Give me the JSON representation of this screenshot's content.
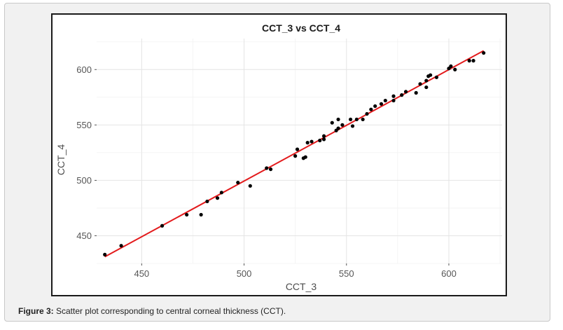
{
  "caption": {
    "label": "Figure 3:",
    "text": " Scatter plot corresponding to central corneal thickness (CCT)."
  },
  "chart_data": {
    "type": "scatter",
    "title": "CCT_3 vs CCT_4",
    "xlabel": "CCT_3",
    "ylabel": "CCT_4",
    "xlim": [
      428,
      626
    ],
    "ylim": [
      425,
      628
    ],
    "x_ticks": [
      450,
      500,
      550,
      600
    ],
    "y_ticks": [
      450,
      500,
      550,
      600
    ],
    "grid": true,
    "legend": "none",
    "point_color": "#000000",
    "line_color": "#e31a1c",
    "series": [
      {
        "points": [
          [
            432,
            433
          ],
          [
            440,
            441
          ],
          [
            460,
            459
          ],
          [
            472,
            469
          ],
          [
            479,
            469
          ],
          [
            482,
            481
          ],
          [
            487,
            484
          ],
          [
            489,
            489
          ],
          [
            497,
            498
          ],
          [
            503,
            495
          ],
          [
            511,
            511
          ],
          [
            513,
            510
          ],
          [
            525,
            522
          ],
          [
            526,
            528
          ],
          [
            529,
            520
          ],
          [
            530,
            521
          ],
          [
            531,
            534
          ],
          [
            533,
            535
          ],
          [
            537,
            536
          ],
          [
            539,
            540
          ],
          [
            539,
            537
          ],
          [
            543,
            552
          ],
          [
            545,
            545
          ],
          [
            546,
            555
          ],
          [
            546,
            547
          ],
          [
            548,
            550
          ],
          [
            552,
            555
          ],
          [
            553,
            549
          ],
          [
            555,
            555
          ],
          [
            558,
            555
          ],
          [
            560,
            560
          ],
          [
            562,
            564
          ],
          [
            564,
            567
          ],
          [
            567,
            569
          ],
          [
            569,
            572
          ],
          [
            573,
            572
          ],
          [
            573,
            576
          ],
          [
            577,
            577
          ],
          [
            579,
            580
          ],
          [
            584,
            579
          ],
          [
            586,
            587
          ],
          [
            589,
            590
          ],
          [
            589,
            584
          ],
          [
            590,
            594
          ],
          [
            591,
            595
          ],
          [
            594,
            593
          ],
          [
            600,
            601
          ],
          [
            601,
            603
          ],
          [
            603,
            600
          ],
          [
            610,
            608
          ],
          [
            612,
            608
          ],
          [
            617,
            615
          ]
        ]
      }
    ],
    "fit_line": [
      [
        432,
        431
      ],
      [
        617,
        617
      ]
    ]
  }
}
